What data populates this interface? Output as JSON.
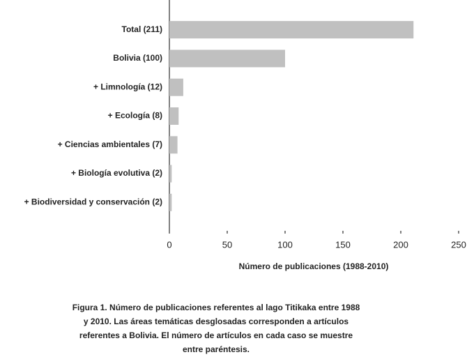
{
  "chart_data": {
    "type": "hbar",
    "categories": [
      "Total (211)",
      "Bolivia (100)",
      "+ Limnología (12)",
      "+ Ecología (8)",
      "+ Ciencias ambientales (7)",
      "+ Biología evolutiva (2)",
      "+ Biodiversidad y conservación (2)"
    ],
    "values": [
      211,
      100,
      12,
      8,
      7,
      2,
      2
    ],
    "color": "#c0c0c0",
    "xlim": [
      0,
      250
    ],
    "xticks": [
      0,
      50,
      100,
      150,
      200,
      250
    ],
    "x_label": "Número de publicaciones (1988-2010)",
    "caption": "Figura 1. Número de publicaciones referentes al lago Titikaka entre 1988 y 2010. Las áreas temáticas desglosadas corresponden a artículos referentes a Bolivia. El número de artículos en cada caso se muestre entre paréntesis."
  }
}
